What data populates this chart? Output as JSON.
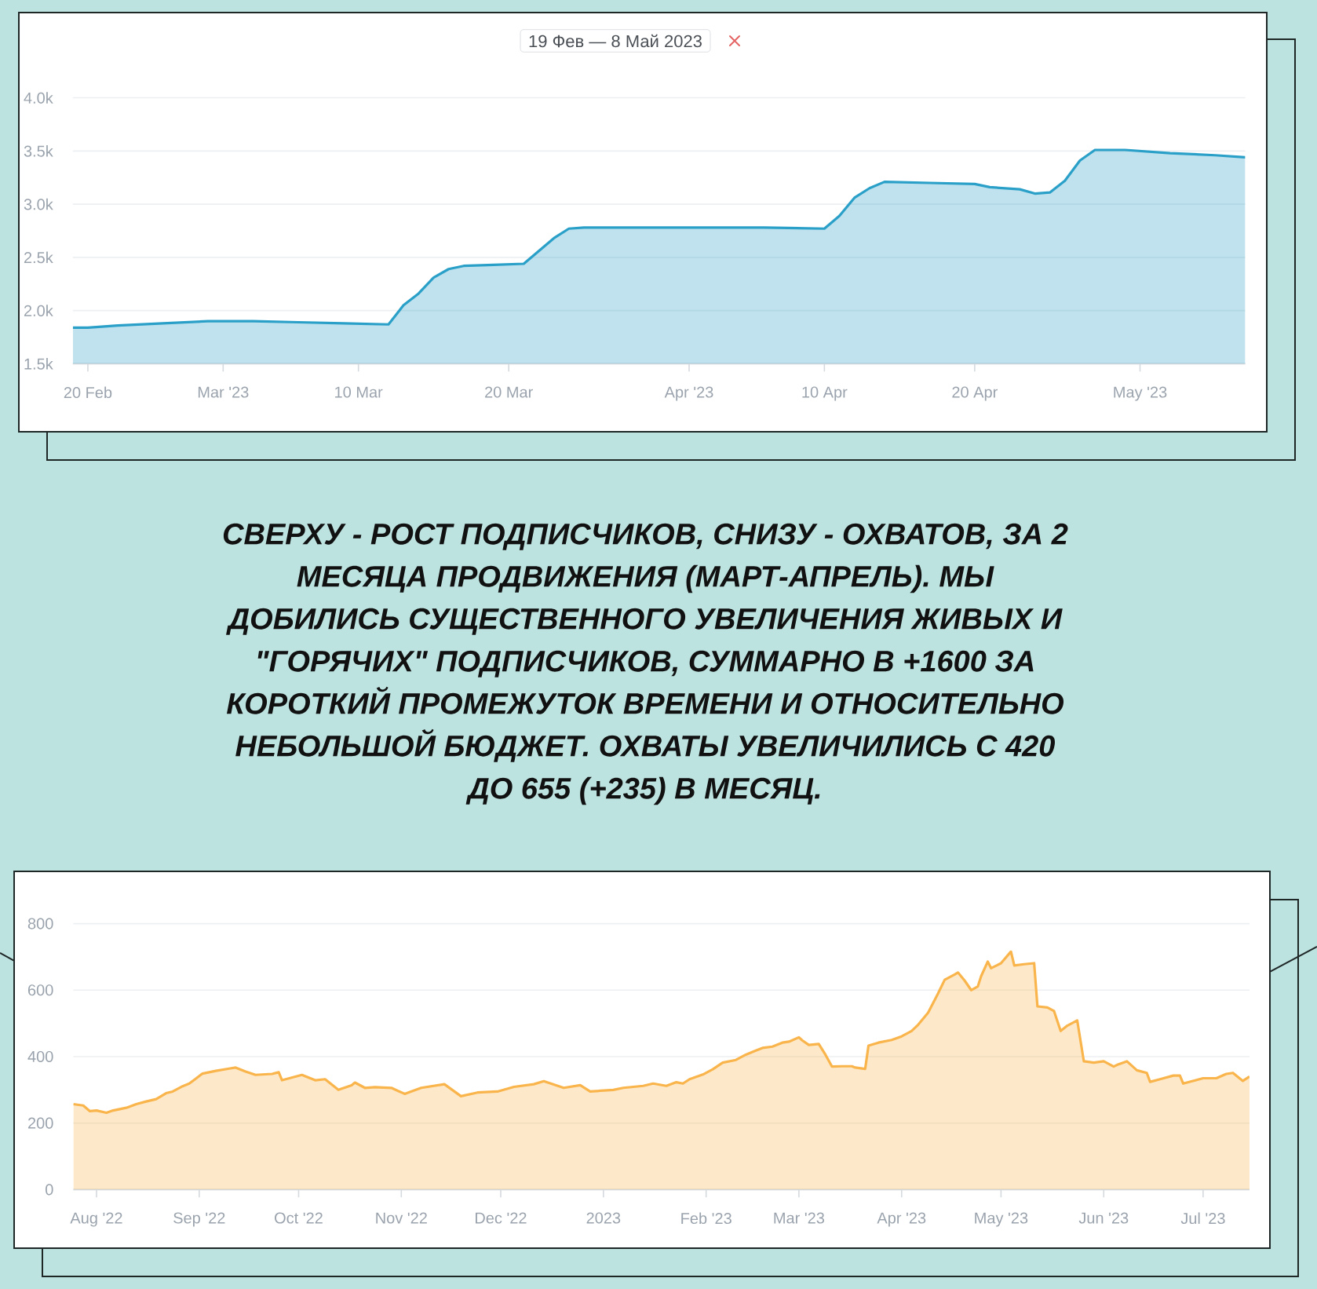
{
  "chart_data": [
    {
      "type": "area",
      "subtitle": "19 Фев — 8 Май 2023",
      "color": "#2aa0c8",
      "x": [
        "2023-02-19",
        "2023-02-20",
        "2023-02-22",
        "2023-02-25",
        "2023-02-28",
        "2023-03-03",
        "2023-03-06",
        "2023-03-09",
        "2023-03-12",
        "2023-03-13",
        "2023-03-14",
        "2023-03-15",
        "2023-03-16",
        "2023-03-17",
        "2023-03-19",
        "2023-03-21",
        "2023-03-22",
        "2023-03-23",
        "2023-03-24",
        "2023-03-25",
        "2023-03-28",
        "2023-04-02",
        "2023-04-06",
        "2023-04-10",
        "2023-04-11",
        "2023-04-12",
        "2023-04-13",
        "2023-04-14",
        "2023-04-17",
        "2023-04-20",
        "2023-04-21",
        "2023-04-23",
        "2023-04-24",
        "2023-04-25",
        "2023-04-26",
        "2023-04-27",
        "2023-04-28",
        "2023-04-30",
        "2023-05-03",
        "2023-05-06",
        "2023-05-08"
      ],
      "values": [
        1840,
        1840,
        1860,
        1880,
        1900,
        1900,
        1890,
        1880,
        1870,
        2050,
        2160,
        2310,
        2390,
        2420,
        2430,
        2440,
        2560,
        2680,
        2770,
        2780,
        2780,
        2780,
        2780,
        2770,
        2890,
        3060,
        3150,
        3210,
        3200,
        3190,
        3160,
        3140,
        3100,
        3110,
        3220,
        3410,
        3510,
        3510,
        3480,
        3460,
        3440
      ],
      "xlim": [
        "2023-02-19",
        "2023-05-08"
      ],
      "ylim": [
        1500,
        4000
      ],
      "xticks": [
        {
          "value": "2023-02-20",
          "label": "20 Feb"
        },
        {
          "value": "2023-03-01",
          "label": "Mar '23"
        },
        {
          "value": "2023-03-10",
          "label": "10 Mar"
        },
        {
          "value": "2023-03-20",
          "label": "20 Mar"
        },
        {
          "value": "2023-04-01",
          "label": "Apr '23"
        },
        {
          "value": "2023-04-10",
          "label": "10 Apr"
        },
        {
          "value": "2023-04-20",
          "label": "20 Apr"
        },
        {
          "value": "2023-05-01",
          "label": "May '23"
        }
      ],
      "yticks": [
        {
          "value": 1500,
          "label": "1.5k"
        },
        {
          "value": 2000,
          "label": "2.0k"
        },
        {
          "value": 2500,
          "label": "2.5k"
        },
        {
          "value": 3000,
          "label": "3.0k"
        },
        {
          "value": 3500,
          "label": "3.5k"
        },
        {
          "value": 4000,
          "label": "4.0k"
        }
      ],
      "grid": "y"
    },
    {
      "type": "other",
      "annotations": [
        "СВЕРХУ - РОСТ ПОДПИСЧИКОВ, СНИЗУ - ОХВАТОВ, ЗА 2 МЕСЯЦА ПРОДВИЖЕНИЯ (МАРТ-АПРЕЛЬ). МЫ ДОБИЛИСЬ СУЩЕСТВЕННОГО УВЕЛИЧЕНИЯ ЖИВЫХ И \"ГОРЯЧИХ\" ПОДПИСЧИКОВ, СУММАРНО В +1600 ЗА КОРОТКИЙ ПРОМЕЖУТОК ВРЕМЕНИ И ОТНОСИТЕЛЬНО НЕБОЛЬШОЙ БЮДЖЕТ. ОХВАТЫ УВЕЛИЧИЛИСЬ С 420 ДО 655 (+235) В МЕСЯЦ."
      ]
    },
    {
      "type": "area",
      "color": "#f9b54c",
      "x": [
        "2022-07-25",
        "2022-07-28",
        "2022-07-30",
        "2022-08-01",
        "2022-08-04",
        "2022-08-06",
        "2022-08-10",
        "2022-08-13",
        "2022-08-16",
        "2022-08-19",
        "2022-08-22",
        "2022-08-24",
        "2022-08-27",
        "2022-08-29",
        "2022-08-31",
        "2022-09-02",
        "2022-09-06",
        "2022-09-10",
        "2022-09-12",
        "2022-09-15",
        "2022-09-18",
        "2022-09-23",
        "2022-09-25",
        "2022-09-26",
        "2022-10-02",
        "2022-10-06",
        "2022-10-09",
        "2022-10-13",
        "2022-10-17",
        "2022-10-18",
        "2022-10-21",
        "2022-10-24",
        "2022-10-29",
        "2022-11-02",
        "2022-11-07",
        "2022-11-14",
        "2022-11-19",
        "2022-11-24",
        "2022-11-30",
        "2022-12-05",
        "2022-12-11",
        "2022-12-14",
        "2022-12-20",
        "2022-12-25",
        "2022-12-28",
        "2023-01-04",
        "2023-01-07",
        "2023-01-13",
        "2023-01-16",
        "2023-01-20",
        "2023-01-23",
        "2023-01-25",
        "2023-01-27",
        "2023-01-31",
        "2023-02-03",
        "2023-02-06",
        "2023-02-10",
        "2023-02-13",
        "2023-02-16",
        "2023-02-18",
        "2023-02-21",
        "2023-02-24",
        "2023-02-26",
        "2023-03-01",
        "2023-03-02",
        "2023-03-04",
        "2023-03-07",
        "2023-03-09",
        "2023-03-11",
        "2023-03-14",
        "2023-03-17",
        "2023-03-18",
        "2023-03-21",
        "2023-03-22",
        "2023-03-25",
        "2023-03-29",
        "2023-04-01",
        "2023-04-04",
        "2023-04-06",
        "2023-04-09",
        "2023-04-12",
        "2023-04-14",
        "2023-04-17",
        "2023-04-18",
        "2023-04-20",
        "2023-04-22",
        "2023-04-24",
        "2023-04-25",
        "2023-04-27",
        "2023-04-28",
        "2023-05-01",
        "2023-05-04",
        "2023-05-05",
        "2023-05-08",
        "2023-05-11",
        "2023-05-12",
        "2023-05-15",
        "2023-05-17",
        "2023-05-19",
        "2023-05-21",
        "2023-05-24",
        "2023-05-26",
        "2023-05-29",
        "2023-06-01",
        "2023-06-04",
        "2023-06-05",
        "2023-06-08",
        "2023-06-11",
        "2023-06-14",
        "2023-06-15",
        "2023-06-18",
        "2023-06-22",
        "2023-06-24",
        "2023-06-25",
        "2023-06-28",
        "2023-07-01",
        "2023-07-05",
        "2023-07-08",
        "2023-07-10",
        "2023-07-13",
        "2023-07-15"
      ],
      "values": [
        257,
        253,
        236,
        238,
        231,
        238,
        246,
        257,
        265,
        272,
        290,
        295,
        311,
        319,
        334,
        349,
        357,
        364,
        367,
        355,
        345,
        348,
        353,
        329,
        345,
        329,
        332,
        300,
        314,
        322,
        306,
        308,
        306,
        288,
        306,
        317,
        281,
        292,
        295,
        309,
        317,
        326,
        306,
        314,
        295,
        300,
        306,
        312,
        319,
        312,
        323,
        319,
        332,
        346,
        362,
        382,
        390,
        406,
        418,
        426,
        430,
        442,
        445,
        458,
        449,
        435,
        438,
        406,
        370,
        371,
        371,
        367,
        363,
        433,
        442,
        450,
        461,
        477,
        496,
        532,
        590,
        631,
        647,
        653,
        629,
        600,
        611,
        642,
        686,
        666,
        681,
        716,
        674,
        678,
        681,
        551,
        548,
        537,
        477,
        493,
        509,
        386,
        382,
        386,
        370,
        375,
        386,
        359,
        351,
        324,
        332,
        343,
        343,
        319,
        327,
        335,
        335,
        348,
        351,
        327,
        340
      ],
      "xlim": [
        "2022-07-25",
        "2023-07-15"
      ],
      "ylim": [
        0,
        800
      ],
      "xticks": [
        {
          "value": "2022-08-01",
          "label": "Aug '22"
        },
        {
          "value": "2022-09-01",
          "label": "Sep '22"
        },
        {
          "value": "2022-10-01",
          "label": "Oct '22"
        },
        {
          "value": "2022-11-01",
          "label": "Nov '22"
        },
        {
          "value": "2022-12-01",
          "label": "Dec '22"
        },
        {
          "value": "2023-01-01",
          "label": "2023"
        },
        {
          "value": "2023-02-01",
          "label": "Feb '23"
        },
        {
          "value": "2023-03-01",
          "label": "Mar '23"
        },
        {
          "value": "2023-04-01",
          "label": "Apr '23"
        },
        {
          "value": "2023-05-01",
          "label": "May '23"
        },
        {
          "value": "2023-06-01",
          "label": "Jun '23"
        },
        {
          "value": "2023-07-01",
          "label": "Jul '23"
        }
      ],
      "yticks": [
        0,
        200,
        400,
        600,
        800
      ],
      "grid": "y"
    }
  ]
}
